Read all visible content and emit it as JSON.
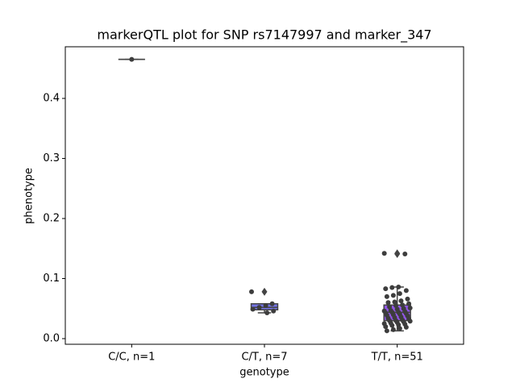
{
  "chart_data": {
    "type": "box",
    "title": "markerQTL plot for SNP rs7147997 and marker_347",
    "xlabel": "genotype",
    "ylabel": "phenotype",
    "categories": [
      "C/C, n=1",
      "C/T, n=7",
      "T/T, n=51"
    ],
    "colors": [
      "#5a5ad8",
      "#7474e6",
      "#9257e8"
    ],
    "point_color": "#3d3d3d",
    "whislo": [
      0.465,
      0.043,
      0.013
    ],
    "q1": [
      0.465,
      0.048,
      0.03
    ],
    "median": [
      0.465,
      0.052,
      0.044
    ],
    "q3": [
      0.465,
      0.058,
      0.056
    ],
    "whishi": [
      0.465,
      0.058,
      0.086
    ],
    "outliers": [
      [],
      [
        0.078
      ],
      [
        0.142,
        0.141
      ]
    ],
    "points": [
      [
        0.465
      ],
      [
        0.078,
        0.058,
        0.055,
        0.052,
        0.049,
        0.046,
        0.043
      ],
      [
        0.142,
        0.141,
        0.086,
        0.085,
        0.083,
        0.08,
        0.075,
        0.072,
        0.07,
        0.066,
        0.063,
        0.061,
        0.06,
        0.058,
        0.056,
        0.055,
        0.053,
        0.051,
        0.05,
        0.049,
        0.047,
        0.046,
        0.045,
        0.044,
        0.044,
        0.043,
        0.042,
        0.041,
        0.04,
        0.039,
        0.038,
        0.036,
        0.035,
        0.034,
        0.033,
        0.031,
        0.03,
        0.03,
        0.029,
        0.028,
        0.027,
        0.026,
        0.025,
        0.024,
        0.023,
        0.022,
        0.02,
        0.019,
        0.017,
        0.015,
        0.013
      ]
    ],
    "ylim": [
      -0.0094,
      0.486
    ],
    "yticks": [
      {
        "value": 0,
        "label": "0.0"
      },
      0.1,
      0.2,
      0.3,
      0.4
    ]
  }
}
